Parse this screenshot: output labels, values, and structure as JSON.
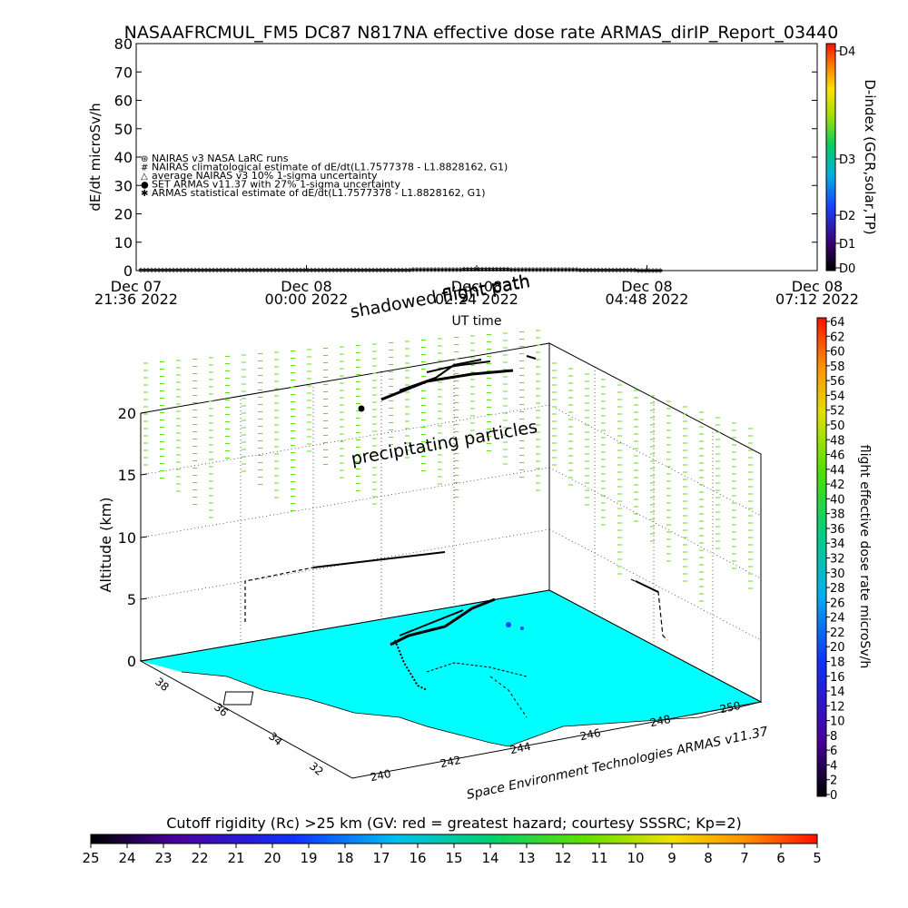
{
  "title": "NASAAFRCMUL_FM5 DC87 N817NA effective dose rate ARMAS_dirIP_Report_03440",
  "chart_data": [
    {
      "type": "line",
      "ylabel": "dE/dt microSv/h",
      "xlabel": "UT time",
      "ylim": [
        0,
        80
      ],
      "yticks": [
        "0",
        "10",
        "20",
        "30",
        "40",
        "50",
        "60",
        "70",
        "80"
      ],
      "xticks": [
        {
          "line1": "Dec 07",
          "line2": "21:36 2022"
        },
        {
          "line1": "Dec 08",
          "line2": "00:00 2022"
        },
        {
          "line1": "Dec 08",
          "line2": "02:24 2022"
        },
        {
          "line1": "Dec 08",
          "line2": "04:48 2022"
        },
        {
          "line1": "Dec 08",
          "line2": "07:12 2022"
        }
      ],
      "legend": [
        {
          "symbol": "⊛",
          "text": "NAIRAS v3 NASA LaRC runs"
        },
        {
          "symbol": "#",
          "text": "NAIRAS climatological estimate of dE/dt(L1.7577378 - L1.8828162, G1)"
        },
        {
          "symbol": "△",
          "text": "average NAIRAS v3 10% 1-sigma uncertainty"
        },
        {
          "symbol": "●",
          "text": "SET ARMAS v11.37 with 27% 1-sigma uncertainty"
        },
        {
          "symbol": "✱",
          "text": "ARMAS statistical estimate of dE/dt(L1.7577378 - L1.8828162, G1)"
        }
      ],
      "legend_placement": "center-left",
      "series_color": "#000000",
      "series": [
        {
          "x": [
            "Dec 07 21:36",
            "Dec 08 00:00",
            "Dec 08 01:30",
            "Dec 08 02:24",
            "Dec 08 03:30",
            "Dec 08 04:10",
            "Dec 08 05:00"
          ],
          "values": [
            0.3,
            0.3,
            0.4,
            0.6,
            0.5,
            0.3,
            0.2
          ]
        }
      ],
      "right_axis": {
        "label": "D-index (GCR,solar,TP)",
        "ticks": [
          "D0",
          "D1",
          "D2",
          "D3",
          "D4"
        ]
      },
      "annotations": [
        "shadowed flight path",
        "flight path"
      ]
    },
    {
      "type": "scatter",
      "subtype": "3d-perspective",
      "zlabel": "Altitude (km)",
      "zticks": [
        "0",
        "5",
        "10",
        "15",
        "20"
      ],
      "xticks": [
        "240",
        "242",
        "244",
        "246",
        "248",
        "250"
      ],
      "yticks": [
        "32",
        "34",
        "36",
        "38"
      ],
      "annotation": "precipitating particles",
      "credit": "Space Environment Technologies ARMAS v11.37",
      "colorbar": {
        "label": "flight effective dose rate microSv/h",
        "ticks": [
          "0",
          "2",
          "4",
          "6",
          "8",
          "10",
          "12",
          "14",
          "16",
          "18",
          "20",
          "22",
          "24",
          "26",
          "28",
          "30",
          "32",
          "34",
          "36",
          "38",
          "40",
          "42",
          "44",
          "46",
          "48",
          "50",
          "52",
          "54",
          "56",
          "58",
          "60",
          "62",
          "64"
        ]
      },
      "map_color": "#00ffff",
      "particle_color": "#66dd22"
    }
  ],
  "bottom_colorbar": {
    "label": "Cutoff rigidity (Rc) >25 km (GV: red = greatest hazard; courtesy SSSRC; Kp=2)",
    "ticks": [
      "25",
      "24",
      "23",
      "22",
      "21",
      "20",
      "19",
      "18",
      "17",
      "16",
      "15",
      "14",
      "13",
      "12",
      "11",
      "10",
      "9",
      "8",
      "7",
      "6",
      "5"
    ]
  }
}
